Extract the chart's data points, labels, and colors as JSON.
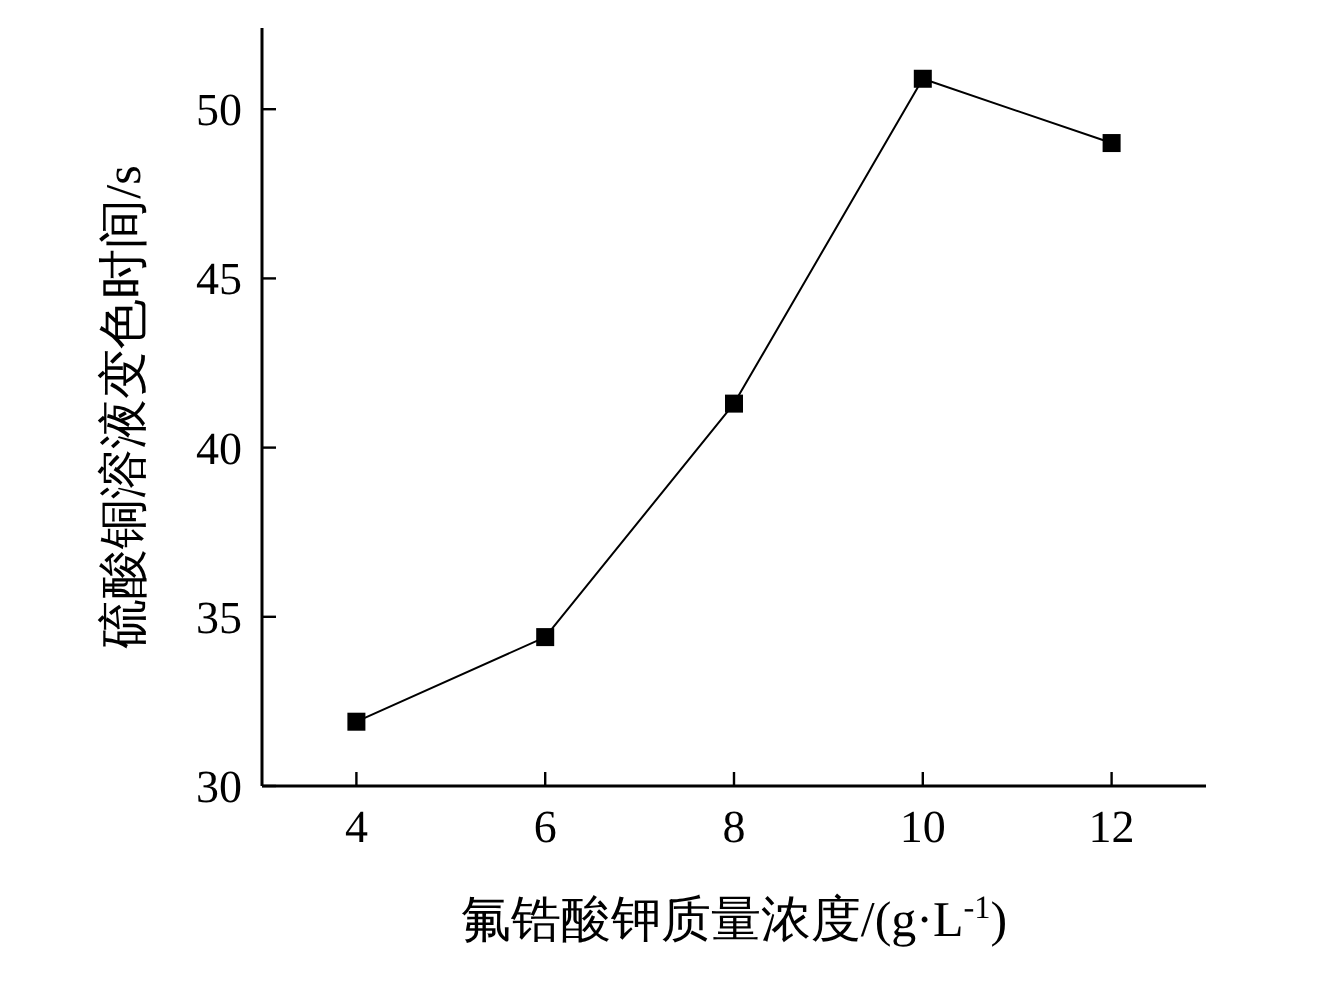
{
  "chart_data": {
    "type": "line",
    "xlabel": "氟锆酸钾质量浓度/(g·L$^{-1}$)",
    "ylabel": "硫酸铜溶液变色时间/s",
    "x": [
      4,
      6,
      8,
      10,
      12
    ],
    "values": [
      31.9,
      34.4,
      41.3,
      50.9,
      49.0
    ],
    "color": "#000000",
    "marker": "square",
    "line_style": "solid",
    "xlim": [
      3,
      13
    ],
    "ylim": [
      30,
      52.4
    ],
    "xticks": [
      4,
      6,
      8,
      10,
      12
    ],
    "yticks": [
      30,
      35,
      40,
      45,
      50
    ]
  }
}
